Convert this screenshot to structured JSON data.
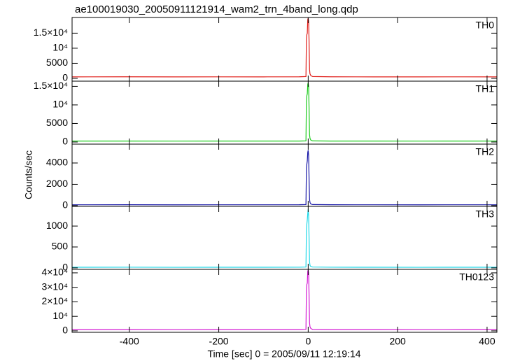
{
  "chart_data": {
    "type": "line",
    "title": "ae100019030_20050911121914_wam2_trn_4band_long.qdp",
    "x_label": "Time [sec] 0 = 2005/09/11 12:19:14",
    "y_label": "Counts/sec",
    "xlim": [
      -528,
      422
    ],
    "xticks": [
      -400,
      -200,
      0,
      200,
      400
    ],
    "x": [
      -528,
      -400,
      -300,
      -200,
      -100,
      -20,
      -5,
      -4,
      -3,
      -2,
      -1,
      0,
      1,
      2,
      3,
      4,
      6,
      10,
      50,
      150,
      250,
      350,
      422
    ],
    "panels": [
      {
        "name": "TH0",
        "color": "#e0201c",
        "ylim": [
          -930,
          20200
        ],
        "yticks": [
          0,
          5000,
          {
            "value": 10000,
            "label": "10⁴"
          },
          {
            "value": 15000,
            "label": "1.5×10⁴"
          }
        ],
        "values": [
          500,
          520,
          490,
          510,
          500,
          520,
          600,
          13000,
          14500,
          15000,
          19500,
          20000,
          19000,
          12000,
          3000,
          1500,
          900,
          600,
          520,
          500,
          490,
          510,
          500
        ]
      },
      {
        "name": "TH1",
        "color": "#1ecc1e",
        "ylim": [
          -570,
          16400
        ],
        "yticks": [
          0,
          5000,
          {
            "value": 10000,
            "label": "10⁴"
          },
          {
            "value": 15000,
            "label": "1.5×10⁴"
          }
        ],
        "values": [
          250,
          260,
          240,
          255,
          250,
          260,
          300,
          11000,
          12500,
          13000,
          15500,
          16000,
          15000,
          9000,
          2000,
          1000,
          500,
          300,
          260,
          250,
          245,
          255,
          250
        ]
      },
      {
        "name": "TH2",
        "color": "#1a1aa8",
        "ylim": [
          -70,
          5770
        ],
        "yticks": [
          0,
          2000,
          4000
        ],
        "values": [
          80,
          85,
          78,
          82,
          80,
          84,
          100,
          3500,
          3900,
          4200,
          5000,
          5200,
          4700,
          2500,
          600,
          300,
          150,
          100,
          85,
          80,
          78,
          82,
          80
        ]
      },
      {
        "name": "TH3",
        "color": "#22d8e8",
        "ylim": [
          -35,
          1470
        ],
        "yticks": [
          0,
          500,
          1000
        ],
        "values": [
          15,
          16,
          14,
          15,
          15,
          16,
          20,
          900,
          1050,
          1150,
          1300,
          1400,
          1250,
          700,
          150,
          60,
          30,
          20,
          16,
          15,
          14,
          15,
          15
        ]
      },
      {
        "name": "TH0123",
        "color": "#d41ad4",
        "ylim": [
          -1000,
          42400
        ],
        "yticks": [
          0,
          {
            "value": 10000,
            "label": "10⁴"
          },
          {
            "value": 20000,
            "label": "2×10⁴"
          },
          {
            "value": 30000,
            "label": "3×10⁴"
          },
          {
            "value": 40000,
            "label": "4×10⁴"
          }
        ],
        "values": [
          850,
          880,
          830,
          860,
          850,
          880,
          1000,
          28000,
          32000,
          33000,
          41000,
          42000,
          40000,
          24000,
          5700,
          2800,
          1600,
          1000,
          880,
          850,
          830,
          860,
          850
        ]
      }
    ]
  }
}
